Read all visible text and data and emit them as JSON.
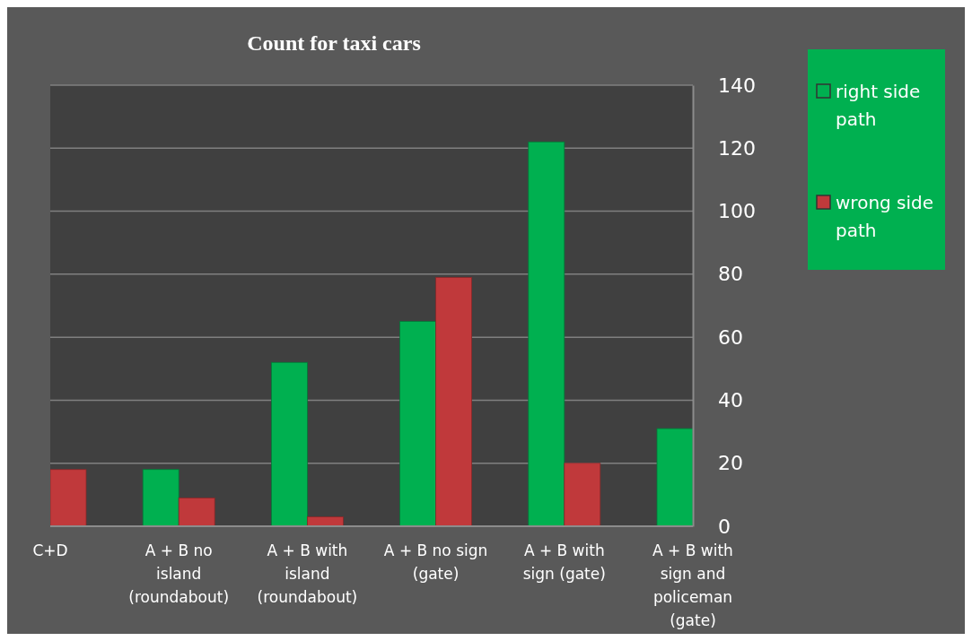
{
  "chart_data": {
    "type": "bar",
    "title": "Count for taxi  cars",
    "categories": [
      "C+D",
      "A + B  no island (roundabout)",
      "A + B   with island (roundabout)",
      "A + B no sign (gate)",
      "A + B with sign (gate)",
      "A + B  with sign and policeman (gate)"
    ],
    "series": [
      {
        "name": "right side path",
        "color": "#00b050",
        "values": [
          0,
          18,
          52,
          65,
          122,
          31
        ]
      },
      {
        "name": "wrong side path",
        "color": "#c0393b",
        "values": [
          18,
          9,
          3,
          79,
          20,
          0
        ]
      }
    ],
    "ylim": [
      0,
      140
    ],
    "yticks": [
      0,
      20,
      40,
      60,
      80,
      100,
      120,
      140
    ],
    "grid": "y",
    "legend": "right"
  }
}
